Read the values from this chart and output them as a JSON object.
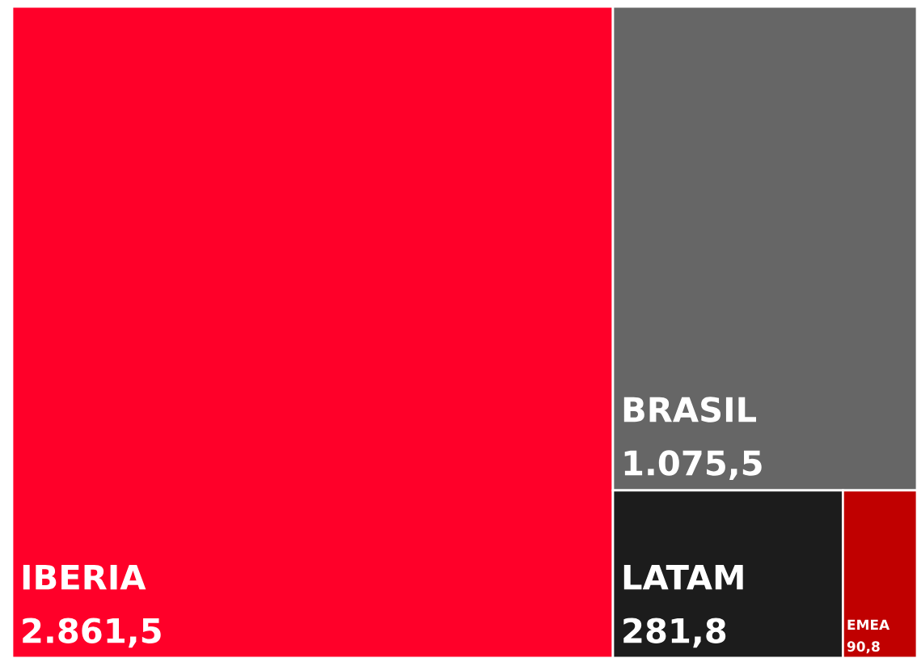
{
  "chart_data": {
    "type": "other",
    "categories": [
      "IBERIA",
      "BRASIL",
      "LATAM",
      "EMEA"
    ],
    "values": [
      2861.5,
      1075.5,
      281.8,
      90.8
    ],
    "value_labels": [
      "2.861,5",
      "1.075,5",
      "281,8",
      "90,8"
    ],
    "colors": [
      "#ff0029",
      "#666666",
      "#1c1c1c",
      "#c00000"
    ]
  }
}
